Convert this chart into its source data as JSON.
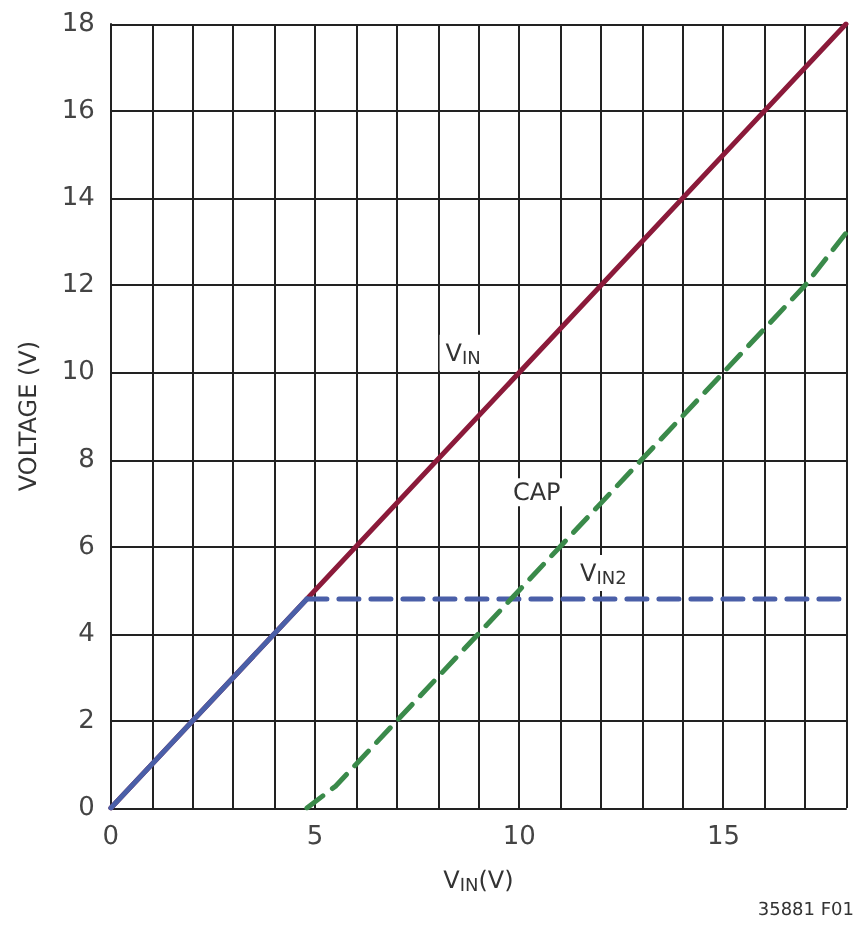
{
  "chart_data": {
    "type": "line",
    "xlabel": "V$_{IN}$(V)",
    "ylabel": "VOLTAGE (V)",
    "annotations": [
      "35881 F01"
    ],
    "xlim": [
      0,
      18
    ],
    "ylim": [
      0,
      18
    ],
    "xticks": [
      0,
      {
        "value": 1,
        "label": null
      },
      {
        "value": 2,
        "label": null
      },
      {
        "value": 3,
        "label": null
      },
      {
        "value": 4,
        "label": null
      },
      5,
      {
        "value": 6,
        "label": null
      },
      {
        "value": 7,
        "label": null
      },
      {
        "value": 8,
        "label": null
      },
      {
        "value": 9,
        "label": null
      },
      10,
      {
        "value": 11,
        "label": null
      },
      {
        "value": 12,
        "label": null
      },
      {
        "value": 13,
        "label": null
      },
      {
        "value": 14,
        "label": null
      },
      15,
      {
        "value": 16,
        "label": null
      },
      {
        "value": 17,
        "label": null
      },
      {
        "value": 18,
        "label": null
      }
    ],
    "yticks": [
      0,
      2,
      4,
      6,
      8,
      10,
      12,
      14,
      16,
      18
    ],
    "grid": true,
    "marker": "none",
    "series": [
      {
        "name": "V$_{IN}$",
        "color": "#8b1a3a",
        "x": [
          0,
          18
        ],
        "values": [
          0,
          18
        ],
        "line_style": "solid"
      },
      {
        "color": "#4a5fa8",
        "x": [
          0,
          4.8
        ],
        "values": [
          0,
          4.8
        ],
        "line_style": "solid"
      },
      {
        "name": "V$_{IN2}$",
        "color": "#4a5fa8",
        "x": [
          4.8,
          18
        ],
        "values": [
          4.8,
          4.8
        ],
        "line_style": "dashed"
      },
      {
        "name": "CAP",
        "color": "#3a8a4a",
        "x": [
          4.8,
          5.5,
          6,
          7,
          8,
          9,
          10,
          11,
          12,
          13,
          14,
          15,
          16,
          17,
          18
        ],
        "values": [
          0,
          0.5,
          1,
          2,
          3,
          4,
          5,
          6,
          7,
          8,
          9,
          10,
          11,
          12,
          13.2
        ],
        "line_style": "dashed"
      }
    ]
  }
}
